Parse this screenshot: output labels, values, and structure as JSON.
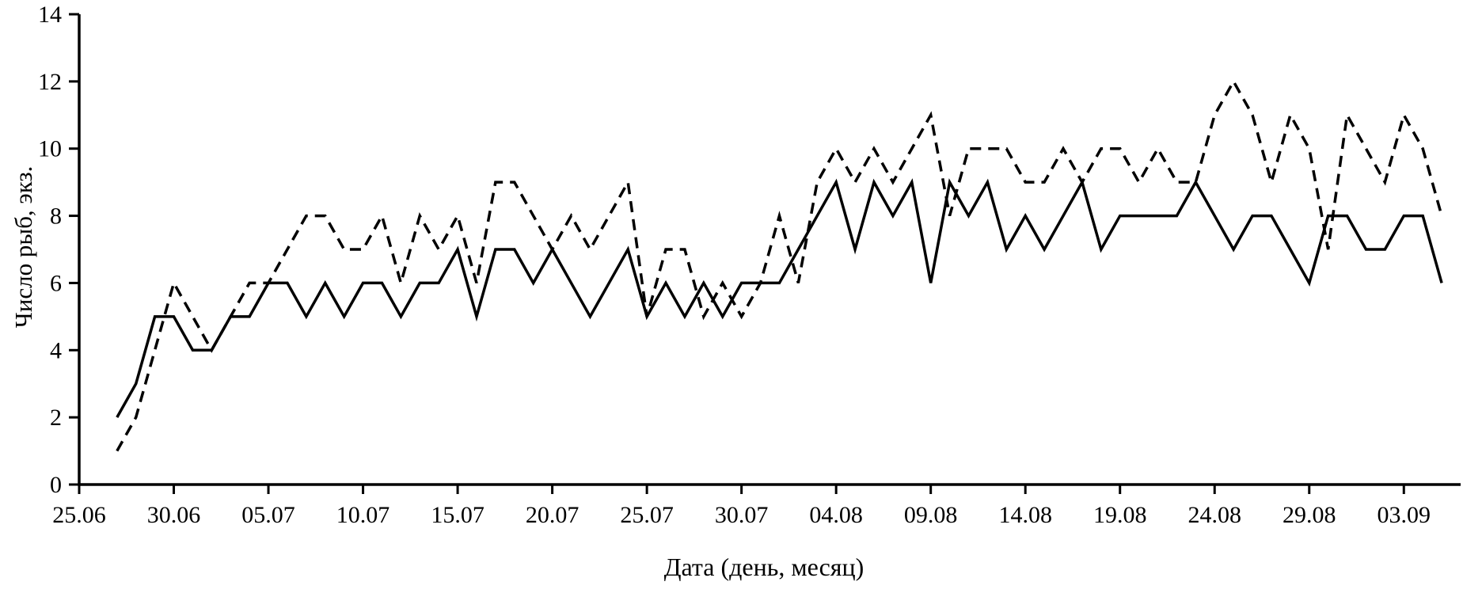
{
  "chart_data": {
    "type": "line",
    "title": "",
    "xlabel": "Дата (день, месяц)",
    "ylabel": "Число рыб, экз.",
    "ylim": [
      0,
      14
    ],
    "y_ticks": [
      0,
      2,
      4,
      6,
      8,
      10,
      12,
      14
    ],
    "grid": false,
    "legend": "none",
    "x_axis_days_total": 73,
    "x_ticks": [
      {
        "day": 0,
        "label": "25.06"
      },
      {
        "day": 5,
        "label": "30.06"
      },
      {
        "day": 10,
        "label": "05.07"
      },
      {
        "day": 15,
        "label": "10.07"
      },
      {
        "day": 20,
        "label": "15.07"
      },
      {
        "day": 25,
        "label": "20.07"
      },
      {
        "day": 30,
        "label": "25.07"
      },
      {
        "day": 35,
        "label": "30.07"
      },
      {
        "day": 40,
        "label": "04.08"
      },
      {
        "day": 45,
        "label": "09.08"
      },
      {
        "day": 50,
        "label": "14.08"
      },
      {
        "day": 55,
        "label": "19.08"
      },
      {
        "day": 60,
        "label": "24.08"
      },
      {
        "day": 65,
        "label": "29.08"
      },
      {
        "day": 70,
        "label": "03.09"
      }
    ],
    "series": [
      {
        "name": "solid-series",
        "style": "solid",
        "start_day": 2,
        "values": [
          2,
          3,
          5,
          5,
          4,
          4,
          5,
          5,
          6,
          6,
          5,
          6,
          5,
          6,
          6,
          5,
          6,
          6,
          7,
          5,
          7,
          7,
          6,
          7,
          6,
          5,
          6,
          7,
          5,
          6,
          5,
          6,
          5,
          6,
          6,
          6,
          7,
          8,
          9,
          7,
          9,
          8,
          9,
          6,
          9,
          8,
          9,
          7,
          8,
          7,
          8,
          9,
          7,
          8,
          8,
          8,
          8,
          9,
          8,
          7,
          8,
          8,
          7,
          6,
          8,
          8,
          7,
          7,
          8,
          8,
          6
        ]
      },
      {
        "name": "dashed-series",
        "style": "dashed",
        "start_day": 2,
        "values": [
          1,
          2,
          4,
          6,
          5,
          4,
          5,
          6,
          6,
          7,
          8,
          8,
          7,
          7,
          8,
          6,
          8,
          7,
          8,
          6,
          9,
          9,
          8,
          7,
          8,
          7,
          8,
          9,
          5,
          7,
          7,
          5,
          6,
          5,
          6,
          8,
          6,
          9,
          10,
          9,
          10,
          9,
          10,
          11,
          8,
          10,
          10,
          10,
          9,
          9,
          10,
          9,
          10,
          10,
          9,
          10,
          9,
          9,
          11,
          12,
          11,
          9,
          11,
          10,
          7,
          11,
          10,
          9,
          11,
          10,
          8
        ]
      }
    ],
    "colors": {
      "line": "#000000",
      "background": "#ffffff"
    }
  }
}
